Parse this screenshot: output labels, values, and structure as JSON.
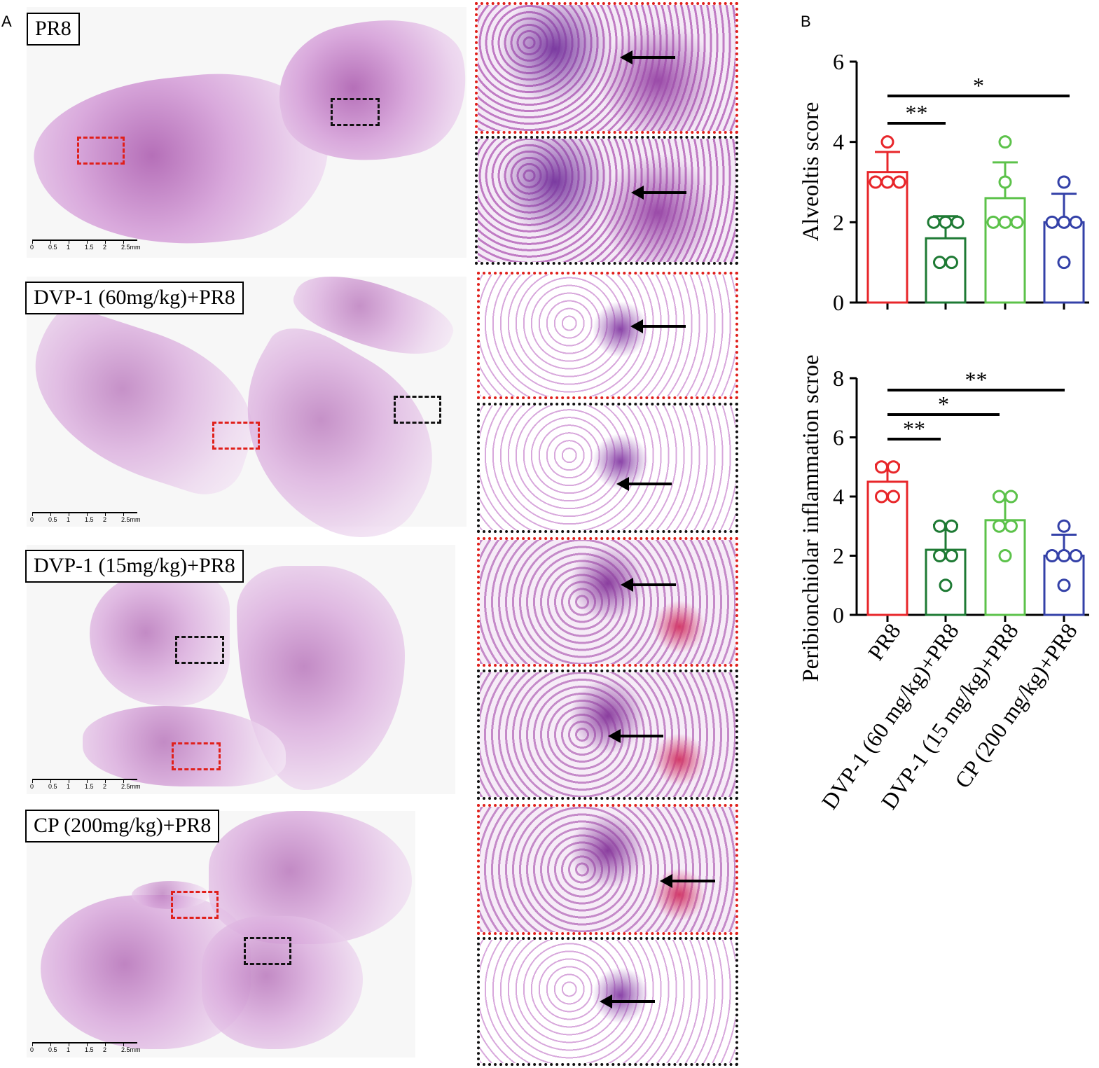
{
  "panel_a": {
    "letter": "A",
    "groups": [
      {
        "label": "PR8"
      },
      {
        "label": "DVP-1 (60mg/kg)+PR8"
      },
      {
        "label": "DVP-1 (15mg/kg)+PR8"
      },
      {
        "label": "CP (200mg/kg)+PR8"
      }
    ],
    "scale_ticks": [
      "0",
      "0.5",
      "1",
      "1.5",
      "2",
      "2.5mm"
    ]
  },
  "panel_b": {
    "letter": "B",
    "x_tick_labels": [
      "PR8",
      "DVP-1 (60 mg/kg)+PR8",
      "DVP-1 (15 mg/kg)+PR8",
      "CP (200 mg/kg)+PR8"
    ],
    "colors": [
      "#e8262a",
      "#1e7a34",
      "#5cc24a",
      "#3441a8"
    ]
  },
  "chart_data": [
    {
      "type": "bar",
      "title": "",
      "ylabel": "Alveoltis score",
      "xlabel": "",
      "categories": [
        "PR8",
        "DVP-1 (60 mg/kg)+PR8",
        "DVP-1 (15 mg/kg)+PR8",
        "CP (200 mg/kg)+PR8"
      ],
      "values": [
        3.25,
        1.6,
        2.6,
        2.0
      ],
      "sd": [
        0.5,
        0.55,
        0.89,
        0.71
      ],
      "points": [
        [
          4,
          3,
          3,
          3
        ],
        [
          2,
          2,
          1,
          1,
          2
        ],
        [
          4,
          3,
          2,
          2,
          2
        ],
        [
          3,
          2,
          2,
          1,
          2
        ]
      ],
      "ylim": [
        0,
        6
      ],
      "yticks": [
        0,
        2,
        4,
        6
      ],
      "significance": [
        {
          "from": 0,
          "to": 1,
          "label": "**"
        },
        {
          "from": 0,
          "to": 3,
          "label": "*"
        }
      ]
    },
    {
      "type": "bar",
      "title": "",
      "ylabel": "Peribionchiolar inflammation scroe",
      "xlabel": "",
      "categories": [
        "PR8",
        "DVP-1 (60 mg/kg)+PR8",
        "DVP-1 (15 mg/kg)+PR8",
        "CP (200 mg/kg)+PR8"
      ],
      "values": [
        4.5,
        2.2,
        3.2,
        2.0
      ],
      "sd": [
        0.58,
        0.84,
        0.84,
        0.71
      ],
      "points": [
        [
          5,
          5,
          4,
          4
        ],
        [
          3,
          3,
          2,
          2,
          1
        ],
        [
          4,
          4,
          3,
          3,
          2
        ],
        [
          3,
          2,
          2,
          2,
          1
        ]
      ],
      "ylim": [
        0,
        8
      ],
      "yticks": [
        0,
        2,
        4,
        6,
        8
      ],
      "significance": [
        {
          "from": 0,
          "to": 1,
          "label": "**"
        },
        {
          "from": 0,
          "to": 2,
          "label": "*"
        },
        {
          "from": 0,
          "to": 3,
          "label": "**"
        }
      ]
    }
  ]
}
